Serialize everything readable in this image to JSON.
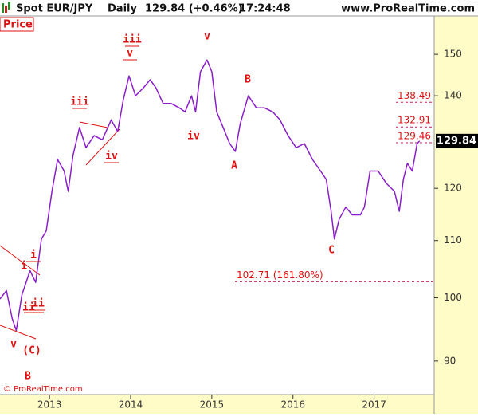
{
  "chart_data": {
    "type": "line",
    "header": {
      "instrument": "Spot EUR/JPY",
      "period": "Daily",
      "quote": "129.84 (+0.46%)",
      "time": "17:24:48",
      "site": "www.ProRealTime.com"
    },
    "panel_label": "Price",
    "copyright": "© ProRealTime.com",
    "log_scale": true,
    "xlim": [
      2012.39,
      2017.74
    ],
    "xticks": [
      2013,
      2014,
      2015,
      2016,
      2017
    ],
    "ylim": [
      85.1,
      159.9
    ],
    "yticks": [
      90,
      100,
      110,
      120,
      140,
      150
    ],
    "last_value": 129.84,
    "series": [
      {
        "color": "#8a1ec8",
        "x": [
          2012.39,
          2012.47,
          2012.54,
          2012.59,
          2012.66,
          2012.76,
          2012.83,
          2012.9,
          2012.96,
          2013.03,
          2013.1,
          2013.18,
          2013.23,
          2013.29,
          2013.37,
          2013.45,
          2013.55,
          2013.65,
          2013.76,
          2013.84,
          2013.91,
          2013.98,
          2014.06,
          2014.16,
          2014.24,
          2014.31,
          2014.4,
          2014.5,
          2014.6,
          2014.67,
          2014.75,
          2014.8,
          2014.86,
          2014.94,
          2015.0,
          2015.06,
          2015.14,
          2015.22,
          2015.29,
          2015.35,
          2015.45,
          2015.55,
          2015.65,
          2015.75,
          2015.84,
          2015.94,
          2016.04,
          2016.14,
          2016.24,
          2016.34,
          2016.41,
          2016.47,
          2016.51,
          2016.57,
          2016.65,
          2016.73,
          2016.83,
          2016.88,
          2016.95,
          2017.05,
          2017.15,
          2017.25,
          2017.31,
          2017.36,
          2017.41,
          2017.47,
          2017.53,
          2017.56
        ],
        "values": [
          99.8,
          101.2,
          96.6,
          94.7,
          100.5,
          104.6,
          102.6,
          110.3,
          111.8,
          119.4,
          125.9,
          123.5,
          119.4,
          126.8,
          132.8,
          128.4,
          131.0,
          130.1,
          134.5,
          131.9,
          139.1,
          144.7,
          140.0,
          141.9,
          143.8,
          141.9,
          138.2,
          138.2,
          137.2,
          136.3,
          140.0,
          136.3,
          145.7,
          148.6,
          145.7,
          136.3,
          132.8,
          129.3,
          127.6,
          133.6,
          140.0,
          137.2,
          137.2,
          136.3,
          134.5,
          131.0,
          128.4,
          129.3,
          125.9,
          123.5,
          121.8,
          115.5,
          110.3,
          114.0,
          116.3,
          114.8,
          114.8,
          116.3,
          123.5,
          123.5,
          121.0,
          119.4,
          115.5,
          121.8,
          125.1,
          123.5,
          129.3,
          129.84
        ]
      }
    ],
    "levels": [
      138.49,
      132.91,
      129.46,
      {
        "value": 102.71,
        "label": "102.71 (161.80%)"
      }
    ],
    "annotations": [
      "iii",
      "v",
      "v",
      "iii",
      "iv",
      "iv",
      "B",
      "A",
      "C",
      "i",
      "i",
      "ii",
      "ii",
      "v",
      "(C)",
      "B"
    ]
  }
}
